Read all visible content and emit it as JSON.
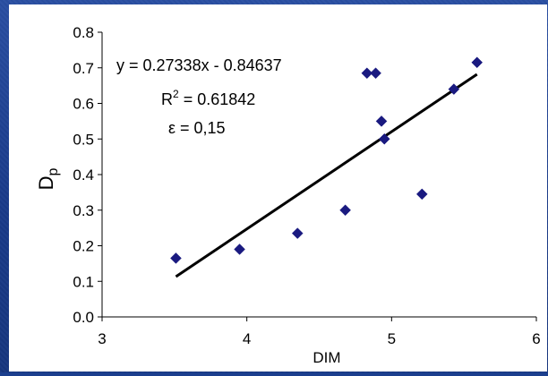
{
  "chart_data": {
    "type": "scatter",
    "xlabel": "DIM",
    "ylabel": "D",
    "ylabel_subscript": "p",
    "xlim": [
      3,
      6
    ],
    "ylim": [
      0.0,
      0.8
    ],
    "x_ticks": [
      "3",
      "4",
      "5",
      "6"
    ],
    "y_ticks": [
      "0.0",
      "0.1",
      "0.2",
      "0.3",
      "0.4",
      "0.5",
      "0.6",
      "0.7",
      "0.8"
    ],
    "grid": false,
    "legend": "none",
    "series": [
      {
        "marker": "diamond",
        "color": "#1a1a80",
        "points": [
          [
            3.51,
            0.165
          ],
          [
            3.95,
            0.19
          ],
          [
            4.35,
            0.235
          ],
          [
            4.68,
            0.3
          ],
          [
            4.83,
            0.685
          ],
          [
            4.89,
            0.685
          ],
          [
            4.93,
            0.55
          ],
          [
            4.95,
            0.5
          ],
          [
            5.21,
            0.345
          ],
          [
            5.43,
            0.64
          ],
          [
            5.59,
            0.715
          ]
        ]
      }
    ],
    "trendline": {
      "type": "linear",
      "slope": 0.27338,
      "intercept": -0.84637,
      "x_range": [
        3.51,
        5.59
      ],
      "color": "#000000"
    },
    "annotations": {
      "equation": "y = 0.27338x - 0.84637",
      "r2_prefix": "R",
      "r2_sup": "2",
      "r2_value": " = 0.61842",
      "epsilon": "ε = 0,15"
    }
  }
}
